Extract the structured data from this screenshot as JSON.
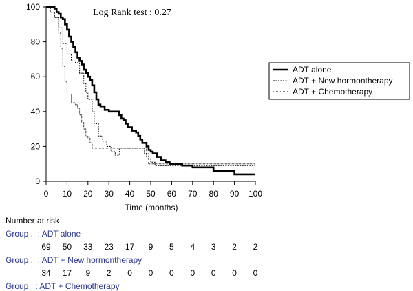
{
  "chart_data": {
    "type": "line",
    "annotation": "Log Rank test : 0.27",
    "xlabel": "Time (months)",
    "ylabel": "",
    "xlim": [
      0,
      100
    ],
    "ylim": [
      0,
      100
    ],
    "x_ticks": [
      0,
      10,
      20,
      30,
      40,
      50,
      60,
      70,
      80,
      90,
      100
    ],
    "y_ticks": [
      0,
      20,
      40,
      60,
      80,
      100
    ],
    "legend_position": "right",
    "series": [
      {
        "name": "ADT alone",
        "style": "solid-thick",
        "color": "#000000",
        "points": [
          [
            0,
            100
          ],
          [
            3,
            100
          ],
          [
            4,
            99
          ],
          [
            5,
            97
          ],
          [
            6,
            96
          ],
          [
            7,
            94
          ],
          [
            8,
            93
          ],
          [
            9,
            90
          ],
          [
            10,
            87
          ],
          [
            11,
            83
          ],
          [
            12,
            80
          ],
          [
            13,
            77
          ],
          [
            14,
            74
          ],
          [
            15,
            71
          ],
          [
            16,
            69
          ],
          [
            17,
            67
          ],
          [
            18,
            64
          ],
          [
            19,
            62
          ],
          [
            20,
            60
          ],
          [
            21,
            58
          ],
          [
            22,
            55
          ],
          [
            23,
            51
          ],
          [
            24,
            47
          ],
          [
            25,
            44
          ],
          [
            26,
            43
          ],
          [
            28,
            41
          ],
          [
            30,
            40
          ],
          [
            34,
            40
          ],
          [
            35,
            38
          ],
          [
            36,
            36
          ],
          [
            37,
            35
          ],
          [
            38,
            33
          ],
          [
            39,
            31
          ],
          [
            41,
            29
          ],
          [
            43,
            28
          ],
          [
            44,
            26
          ],
          [
            45,
            24
          ],
          [
            46,
            22
          ],
          [
            48,
            20
          ],
          [
            49,
            18
          ],
          [
            50,
            17
          ],
          [
            51,
            16
          ],
          [
            53,
            14
          ],
          [
            55,
            12
          ],
          [
            57,
            11
          ],
          [
            59,
            10
          ],
          [
            65,
            9
          ],
          [
            70,
            8
          ],
          [
            80,
            6
          ],
          [
            90,
            4
          ],
          [
            100,
            4
          ]
        ]
      },
      {
        "name": "ADT + New hormontherapy",
        "style": "dotted",
        "color": "#000000",
        "points": [
          [
            0,
            100
          ],
          [
            2,
            97
          ],
          [
            4,
            94
          ],
          [
            6,
            88
          ],
          [
            8,
            79
          ],
          [
            10,
            73
          ],
          [
            12,
            69
          ],
          [
            14,
            68
          ],
          [
            16,
            62
          ],
          [
            18,
            56
          ],
          [
            19,
            51
          ],
          [
            20,
            47
          ],
          [
            22,
            40
          ],
          [
            23,
            33
          ],
          [
            25,
            26
          ],
          [
            27,
            23
          ],
          [
            29,
            20
          ],
          [
            31,
            17
          ],
          [
            33,
            15
          ],
          [
            35,
            19
          ],
          [
            45,
            19
          ],
          [
            47,
            16
          ],
          [
            49,
            13
          ],
          [
            50,
            11
          ],
          [
            52,
            9
          ],
          [
            100,
            9
          ]
        ]
      },
      {
        "name": "ADT + Chemotherapy",
        "style": "dashed-fine",
        "color": "#000000",
        "points": [
          [
            0,
            100
          ],
          [
            2,
            97
          ],
          [
            4,
            94
          ],
          [
            6,
            85
          ],
          [
            7,
            76
          ],
          [
            8,
            66
          ],
          [
            9,
            57
          ],
          [
            10,
            50
          ],
          [
            11,
            50
          ],
          [
            12,
            45
          ],
          [
            14,
            44
          ],
          [
            15,
            42
          ],
          [
            16,
            38
          ],
          [
            17,
            34
          ],
          [
            18,
            30
          ],
          [
            19,
            26
          ],
          [
            20,
            25
          ],
          [
            21,
            22
          ],
          [
            22,
            19
          ],
          [
            24,
            19
          ],
          [
            46,
            19
          ],
          [
            48,
            14
          ],
          [
            49,
            10
          ],
          [
            100,
            10
          ]
        ]
      }
    ]
  },
  "risk_table": {
    "title": "Number at risk",
    "time_points": [
      0,
      10,
      20,
      30,
      40,
      50,
      60,
      70,
      80,
      90,
      100
    ],
    "groups": [
      {
        "label": "Group .  : ADT alone",
        "counts": [
          "69",
          "50",
          "33",
          "23",
          "17",
          "9",
          "5",
          "4",
          "3",
          "2",
          "2"
        ]
      },
      {
        "label": "Group .  : ADT + New hormontherapy",
        "counts": [
          "34",
          "17",
          "9",
          "2",
          "0",
          "0",
          "0",
          "0",
          "0",
          "0",
          "0"
        ]
      },
      {
        "label": "Group   : ADT + Chemotherapy",
        "counts": []
      }
    ]
  }
}
